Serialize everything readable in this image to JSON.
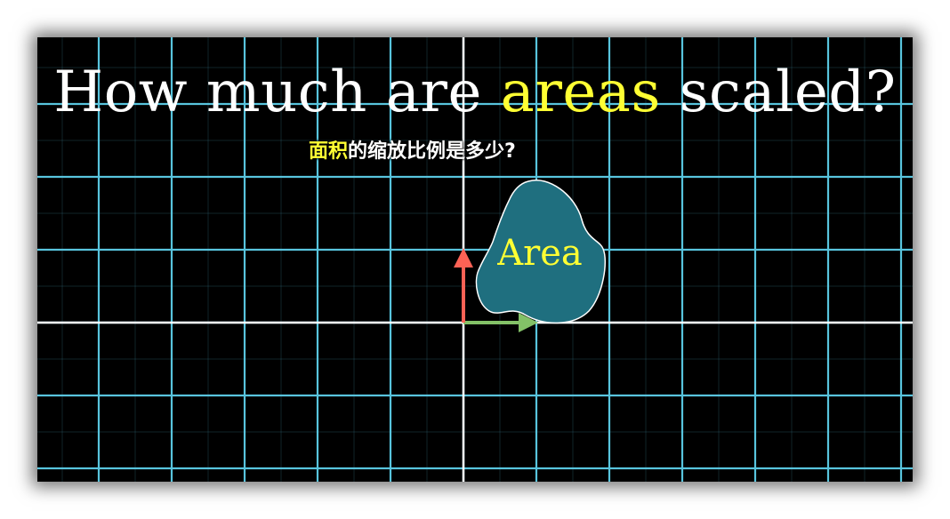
{
  "title": {
    "before": "How much are ",
    "highlight": "areas",
    "after": " scaled?"
  },
  "subtitle": {
    "highlight": "面积",
    "rest": "的缩放比例是多少?"
  },
  "shape": {
    "label": "Area",
    "fill_color": "#1f6f7f",
    "label_color": "#ffff33"
  },
  "vectors": {
    "i_hat": {
      "name": "i-hat",
      "color": "#83c167"
    },
    "j_hat": {
      "name": "j-hat",
      "color": "#fc6255"
    }
  },
  "grid": {
    "line_color": "#58c4dd",
    "axis_color": "#ffffff",
    "background": "#000000"
  },
  "colors": {
    "highlight": "#ffff33",
    "text": "#ffffff"
  }
}
